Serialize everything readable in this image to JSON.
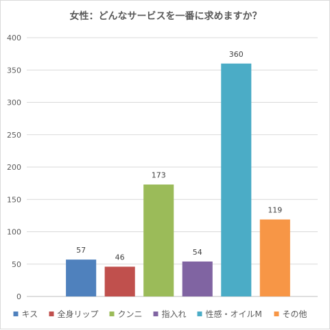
{
  "chart_data": {
    "type": "bar",
    "title": "女性：どんなサービスを一番に求めますか？",
    "categories": [
      "キス",
      "全身リップ",
      "クンニ",
      "指入れ",
      "性感・オイルM",
      "その他"
    ],
    "values": [
      57,
      46,
      173,
      54,
      360,
      119
    ],
    "colors": [
      "#4f81bd",
      "#c0504d",
      "#9bbb59",
      "#8064a2",
      "#4bacc6",
      "#f79646"
    ],
    "ylim": [
      0,
      400
    ],
    "yticks": [
      0,
      50,
      100,
      150,
      200,
      250,
      300,
      350,
      400
    ],
    "grid": true,
    "legend": "bottom"
  }
}
